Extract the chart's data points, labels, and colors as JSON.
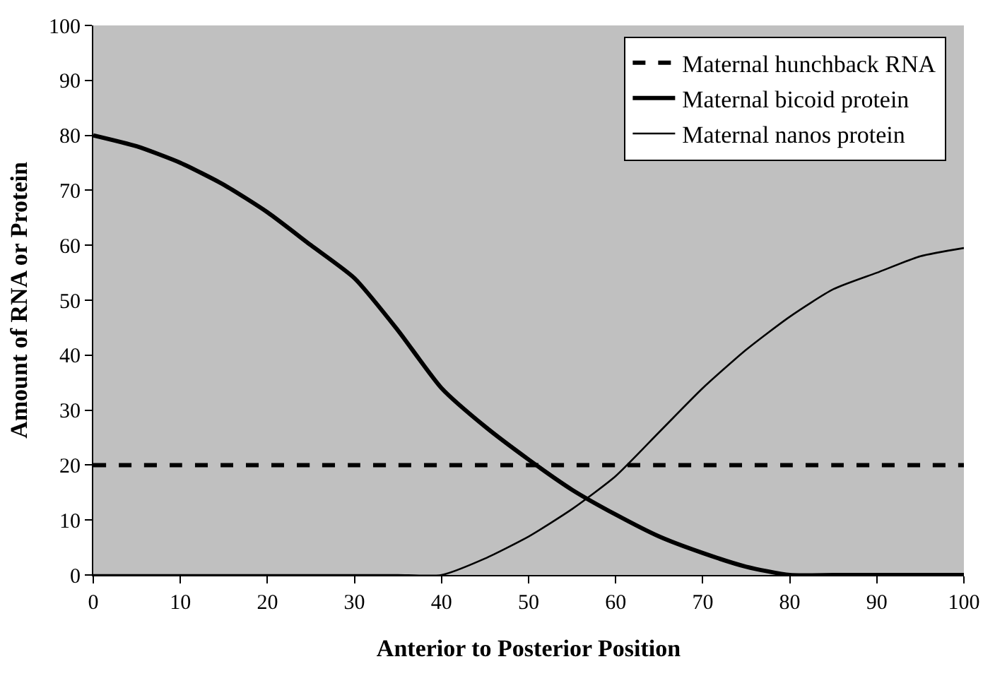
{
  "chart_data": {
    "type": "line",
    "xlabel": "Anterior to Posterior Position",
    "ylabel": "Amount of RNA or Protein",
    "x": [
      0,
      5,
      10,
      15,
      20,
      25,
      30,
      35,
      40,
      45,
      50,
      55,
      60,
      65,
      70,
      75,
      80,
      85,
      90,
      95,
      100
    ],
    "series": [
      {
        "name": "Maternal hunchback RNA",
        "color": "#000000",
        "line_style": "dashed",
        "values": [
          20,
          20,
          20,
          20,
          20,
          20,
          20,
          20,
          20,
          20,
          20,
          20,
          20,
          20,
          20,
          20,
          20,
          20,
          20,
          20,
          20
        ]
      },
      {
        "name": "Maternal bicoid protein",
        "color": "#000000",
        "line_style": "solid",
        "values": [
          80,
          78,
          75,
          71,
          66,
          60,
          54,
          44.5,
          34,
          27,
          21,
          15.5,
          11,
          7,
          4,
          1.5,
          0,
          0,
          0,
          0,
          0
        ]
      },
      {
        "name": "Maternal nanos protein",
        "color": "#000000",
        "line_style": "solid",
        "values": [
          0,
          0,
          0,
          0,
          0,
          0,
          0,
          0,
          0,
          3,
          7,
          12,
          18,
          26,
          34,
          41,
          47,
          52,
          55,
          58,
          59.5
        ]
      }
    ],
    "xlim": [
      0,
      100
    ],
    "xticks": [
      0,
      10,
      20,
      30,
      40,
      50,
      60,
      70,
      80,
      90,
      100
    ],
    "ylim": [
      0,
      100
    ],
    "yticks": [
      0,
      10,
      20,
      30,
      40,
      50,
      60,
      70,
      80,
      90,
      100
    ],
    "grid": false,
    "legend": "top right",
    "marker": "none"
  }
}
